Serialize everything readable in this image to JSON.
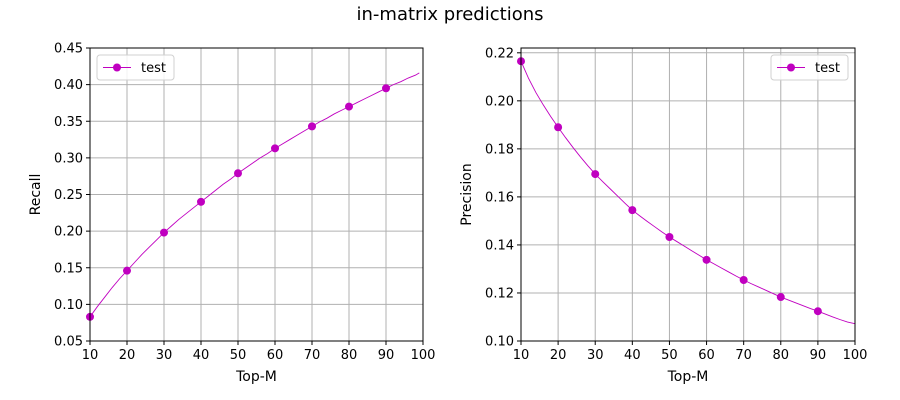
{
  "figure": {
    "title": "in-matrix predictions"
  },
  "colors": {
    "series": "#c000c0",
    "grid": "#b0b0b0",
    "axes": "#000000"
  },
  "chart_data": [
    {
      "type": "line",
      "title": "",
      "xlabel": "Top-M",
      "ylabel": "Recall",
      "xlim": [
        10,
        100
      ],
      "ylim": [
        0.05,
        0.45
      ],
      "xticks": [
        "10",
        "20",
        "30",
        "40",
        "50",
        "60",
        "70",
        "80",
        "90",
        "100"
      ],
      "yticks": [
        "0.05",
        "0.10",
        "0.15",
        "0.20",
        "0.25",
        "0.30",
        "0.35",
        "0.40",
        "0.45"
      ],
      "grid": true,
      "legend_position": "upper-left",
      "series": [
        {
          "name": "test",
          "marker_x": [
            10,
            20,
            30,
            40,
            50,
            60,
            70,
            80,
            90
          ],
          "marker_y": [
            0.083,
            0.146,
            0.198,
            0.24,
            0.279,
            0.313,
            0.343,
            0.37,
            0.395
          ],
          "x": [
            10,
            12,
            14,
            16,
            18,
            20,
            22,
            24,
            26,
            28,
            30,
            32,
            34,
            36,
            38,
            40,
            42,
            44,
            46,
            48,
            50,
            52,
            54,
            56,
            58,
            60,
            62,
            64,
            66,
            68,
            70,
            72,
            74,
            76,
            78,
            80,
            82,
            84,
            86,
            88,
            90,
            92,
            94,
            96,
            98,
            99
          ],
          "y": [
            0.083,
            0.097,
            0.11,
            0.123,
            0.135,
            0.146,
            0.157,
            0.168,
            0.178,
            0.188,
            0.198,
            0.207,
            0.216,
            0.224,
            0.232,
            0.24,
            0.248,
            0.256,
            0.264,
            0.271,
            0.279,
            0.286,
            0.293,
            0.3,
            0.306,
            0.313,
            0.319,
            0.325,
            0.331,
            0.337,
            0.343,
            0.349,
            0.354,
            0.36,
            0.365,
            0.37,
            0.375,
            0.38,
            0.385,
            0.39,
            0.395,
            0.4,
            0.404,
            0.409,
            0.413,
            0.416
          ]
        }
      ]
    },
    {
      "type": "line",
      "title": "",
      "xlabel": "Top-M",
      "ylabel": "Precision",
      "xlim": [
        10,
        100
      ],
      "ylim": [
        0.1,
        0.222
      ],
      "xticks": [
        "10",
        "20",
        "30",
        "40",
        "50",
        "60",
        "70",
        "80",
        "90",
        "100"
      ],
      "yticks": [
        "0.10",
        "0.12",
        "0.14",
        "0.16",
        "0.18",
        "0.20",
        "0.22"
      ],
      "grid": true,
      "legend_position": "upper-right",
      "series": [
        {
          "name": "test",
          "marker_x": [
            10,
            20,
            30,
            40,
            50,
            60,
            70,
            80,
            90
          ],
          "marker_y": [
            0.2165,
            0.189,
            0.1695,
            0.1545,
            0.1433,
            0.1338,
            0.1254,
            0.1183,
            0.1124
          ],
          "x": [
            10,
            12,
            14,
            16,
            18,
            20,
            22,
            24,
            26,
            28,
            30,
            32,
            34,
            36,
            38,
            40,
            42,
            44,
            46,
            48,
            50,
            52,
            54,
            56,
            58,
            60,
            62,
            64,
            66,
            68,
            70,
            72,
            74,
            76,
            78,
            80,
            82,
            84,
            86,
            88,
            90,
            92,
            94,
            96,
            98,
            100
          ],
          "y": [
            0.2165,
            0.2095,
            0.2035,
            0.1983,
            0.1935,
            0.189,
            0.1847,
            0.1806,
            0.1767,
            0.173,
            0.1695,
            0.1664,
            0.1634,
            0.1604,
            0.1574,
            0.1545,
            0.1521,
            0.1498,
            0.1476,
            0.1454,
            0.1433,
            0.1414,
            0.1395,
            0.1376,
            0.1357,
            0.1338,
            0.1321,
            0.1304,
            0.1287,
            0.127,
            0.1254,
            0.1239,
            0.1225,
            0.1211,
            0.1197,
            0.1183,
            0.1171,
            0.1159,
            0.1147,
            0.1135,
            0.1124,
            0.1112,
            0.11,
            0.1089,
            0.1079,
            0.1072
          ]
        }
      ]
    }
  ]
}
